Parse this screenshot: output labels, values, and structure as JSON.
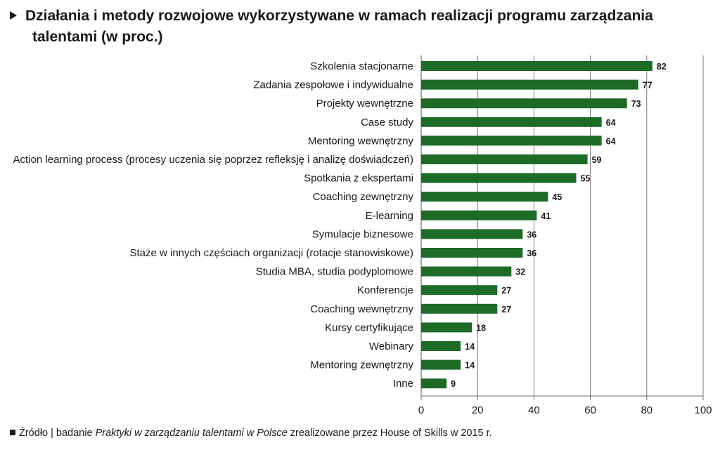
{
  "title": {
    "line1": "Działania i metody rozwojowe wykorzystywane w ramach realizacji programu zarządzania",
    "line2": "talentami (w proc.)"
  },
  "colors": {
    "bar": "#1e6b27",
    "grid": "#6b6b6b",
    "text": "#1a1a1a"
  },
  "chart_data": {
    "type": "bar",
    "orientation": "horizontal",
    "categories": [
      "Szkolenia stacjonarne",
      "Zadania zespołowe i indywidualne",
      "Projekty wewnętrzne",
      "Case study",
      "Mentoring wewnętrzny",
      "Action learning process (procesy uczenia się poprzez refleksję i analizę doświadczeń)",
      "Spotkania z ekspertami",
      "Coaching zewnętrzny",
      "E-learning",
      "Symulacje biznesowe",
      "Staże w innych częściach organizacji (rotacje stanowiskowe)",
      "Studia MBA, studia podyplomowe",
      "Konferencje",
      "Coaching wewnętrzny",
      "Kursy certyfikujące",
      "Webinary",
      "Mentoring zewnętrzny",
      "Inne"
    ],
    "values": [
      82,
      77,
      73,
      64,
      64,
      59,
      55,
      45,
      41,
      36,
      36,
      32,
      27,
      27,
      18,
      14,
      14,
      9
    ],
    "xlim": [
      0,
      100
    ],
    "xticks": [
      0,
      20,
      40,
      60,
      80,
      100
    ],
    "grid": true
  },
  "footer": {
    "prefix": "Źródło | badanie ",
    "italic": "Praktyki w zarządzaniu talentami w Polsce",
    "suffix": " zrealizowane przez House of Skills w 2015 r."
  }
}
